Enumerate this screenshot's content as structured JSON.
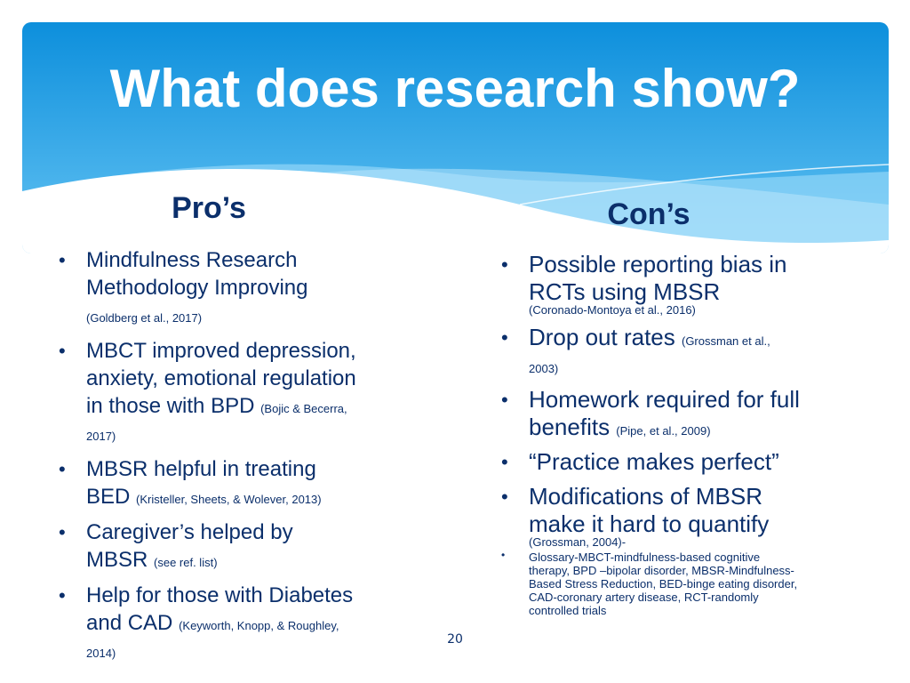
{
  "slide": {
    "title": "What does research show?",
    "page_number": "20",
    "colors": {
      "header_top": "#0d8fdc",
      "header_bottom": "#64c3f3",
      "text": "#0b2f6b"
    }
  },
  "pros": {
    "heading": "Pro’s",
    "items": [
      {
        "text": "Mindfulness Research Methodology Improving ",
        "cite": "(Goldberg et al., 2017)"
      },
      {
        "text": "MBCT improved depression, anxiety, emotional regulation in those with BPD ",
        "cite": "(Bojic & Becerra, 2017)"
      },
      {
        "text": "MBSR helpful in treating BED ",
        "cite": "(Kristeller, Sheets, & Wolever, 2013)"
      },
      {
        "text": "Caregiver’s helped by MBSR ",
        "cite": "(see ref. list)"
      },
      {
        "text": "Help for those with Diabetes and CAD ",
        "cite": "(Keyworth, Knopp, & Roughley, 2014)"
      }
    ]
  },
  "cons": {
    "heading": "Con’s",
    "items": [
      {
        "text": "Possible reporting bias in RCTs using MBSR",
        "cite": "(Coronado-Montoya et al., 2016)"
      },
      {
        "text": "Drop out rates ",
        "cite": "(Grossman et al., 2003)"
      },
      {
        "text": "Homework required for full benefits ",
        "cite": "(Pipe, et al., 2009)"
      },
      {
        "text": "“Practice makes perfect”",
        "cite": ""
      },
      {
        "text": "Modifications of MBSR make it hard to quantify",
        "cite": "(Grossman, 2004)-"
      }
    ],
    "glossary": "Glossary-MBCT-mindfulness-based cognitive therapy, BPD –bipolar disorder, MBSR-Mindfulness-Based Stress Reduction, BED-binge eating disorder, CAD-coronary artery disease, RCT-randomly controlled trials"
  },
  "bullet_glyph": "•"
}
